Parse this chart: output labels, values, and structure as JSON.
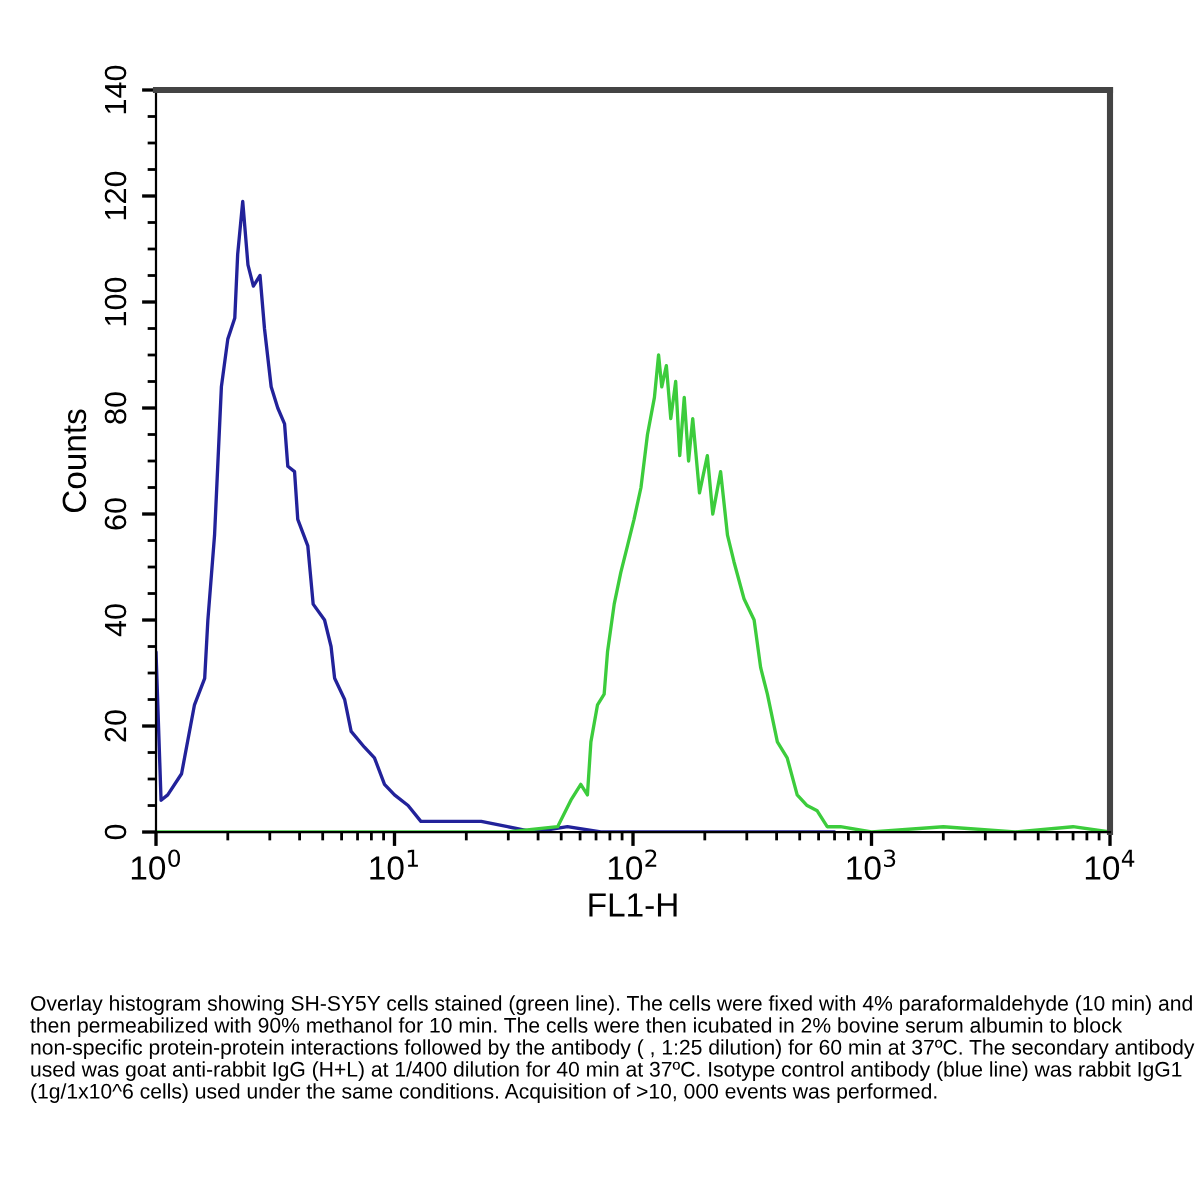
{
  "chart_data": {
    "type": "line",
    "xlabel": "FL1-H",
    "ylabel": "Counts",
    "log": "x",
    "xlim": [
      1,
      10000
    ],
    "ylim": [
      0,
      140
    ],
    "xticks": [
      {
        "value": 1,
        "label": "10$^{0}$"
      },
      {
        "value": 10,
        "label": "10$^{1}$"
      },
      {
        "value": 100,
        "label": "10$^{2}$"
      },
      {
        "value": 1000,
        "label": "10$^{3}$"
      },
      {
        "value": 10000,
        "label": "10$^{4}$"
      }
    ],
    "yticks": [
      0,
      20,
      40,
      60,
      80,
      100,
      120,
      140
    ],
    "series": [
      {
        "color": "#22229a",
        "x": [
          1.0,
          1.05,
          1.12,
          1.28,
          1.45,
          1.6,
          1.65,
          1.76,
          1.88,
          2.0,
          2.14,
          2.2,
          2.31,
          2.43,
          2.56,
          2.73,
          2.85,
          3.04,
          3.24,
          3.46,
          3.57,
          3.81,
          3.93,
          4.33,
          4.56,
          5.09,
          5.42,
          5.61,
          6.18,
          6.58,
          7.48,
          8.24,
          9.08,
          10.0,
          11.4,
          12.9,
          17.8,
          23.1,
          29.8,
          38.6,
          53.1,
          73.3,
          100,
          150,
          250,
          400,
          700
        ],
        "values": [
          34,
          6,
          7,
          11,
          24,
          29,
          40,
          56,
          84,
          93,
          97,
          109,
          119,
          107,
          103,
          105,
          95,
          84,
          80,
          77,
          69,
          68,
          59,
          54,
          43,
          40,
          35,
          29,
          25,
          19,
          16,
          14,
          9,
          7,
          5,
          2,
          2,
          2,
          1,
          0,
          1,
          0,
          0,
          0,
          0,
          0,
          0
        ]
      },
      {
        "color": "#3ccc3c",
        "x": [
          1,
          10,
          30,
          48.3,
          54.9,
          60.4,
          64.4,
          66.6,
          71,
          75.7,
          78.2,
          83.4,
          88.9,
          94.8,
          101,
          108,
          115,
          123,
          128,
          132,
          138,
          144,
          151,
          157,
          164,
          171,
          178,
          190,
          205,
          216,
          233,
          249,
          265,
          292,
          322,
          343,
          366,
          403,
          443,
          488,
          537,
          592,
          652,
          741,
          1000,
          2000,
          4000,
          7000,
          10000
        ],
        "values": [
          0,
          0,
          0,
          1,
          6,
          9,
          7,
          17,
          24,
          26,
          34,
          43,
          49,
          54,
          59,
          65,
          75,
          82,
          90,
          84,
          88,
          78,
          85,
          71,
          82,
          70,
          78,
          64,
          71,
          60,
          68,
          56,
          51,
          44,
          40,
          31,
          26,
          17,
          14,
          7,
          5,
          4,
          1,
          1,
          0,
          1,
          0,
          1,
          0
        ]
      }
    ],
    "annotations": [
      "Overlay histogram showing SH-SY5Y cells stained (green line). The cells were fixed with 4% paraformaldehyde (10 min) and then permeabilized with 90% methanol for 10 min. The cells were then icubated in 2% bovine serum albumin to block non-specific protein-protein interactions followed by the antibody ( , 1:25 dilution) for 60 min at 37ºC. The secondary antibody used was goat anti-rabbit IgG (H+L) at 1/400 dilution for 40 min at 37ºC. Isotype control antibody (blue line) was rabbit IgG1 (1g/1x10^6 cells) used under the same conditions. Acquisition of >10, 000 events was performed."
    ]
  }
}
